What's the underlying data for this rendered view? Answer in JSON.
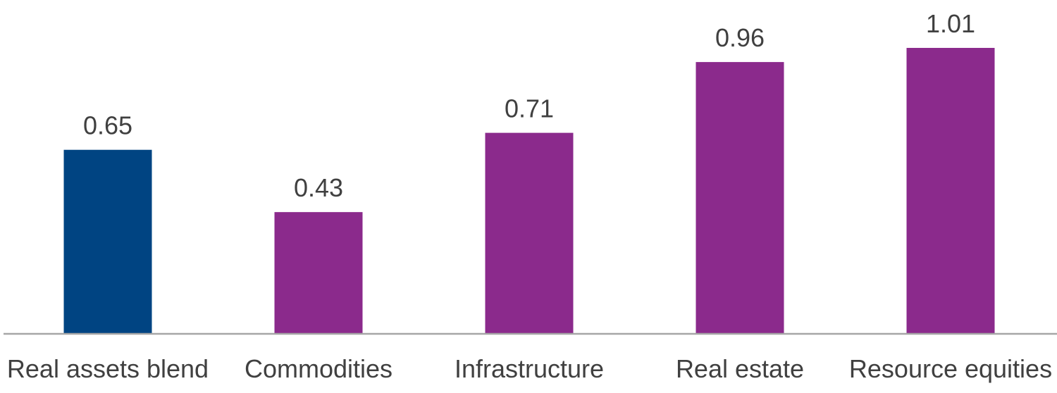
{
  "chart_data": {
    "type": "bar",
    "categories": [
      "Real assets blend",
      "Commodities",
      "Infrastructure",
      "Real estate",
      "Resource equities"
    ],
    "values": [
      0.65,
      0.43,
      0.71,
      0.96,
      1.01
    ],
    "value_labels": [
      "0.65",
      "0.43",
      "0.71",
      "0.96",
      "1.01"
    ],
    "bar_colors": [
      "#004482",
      "#8b2a8c",
      "#8b2a8c",
      "#8b2a8c",
      "#8b2a8c"
    ],
    "ylim": [
      0,
      1.01
    ],
    "grid": false,
    "axis_color": "#a6a6a6",
    "title": "",
    "xlabel": "",
    "ylabel": ""
  }
}
